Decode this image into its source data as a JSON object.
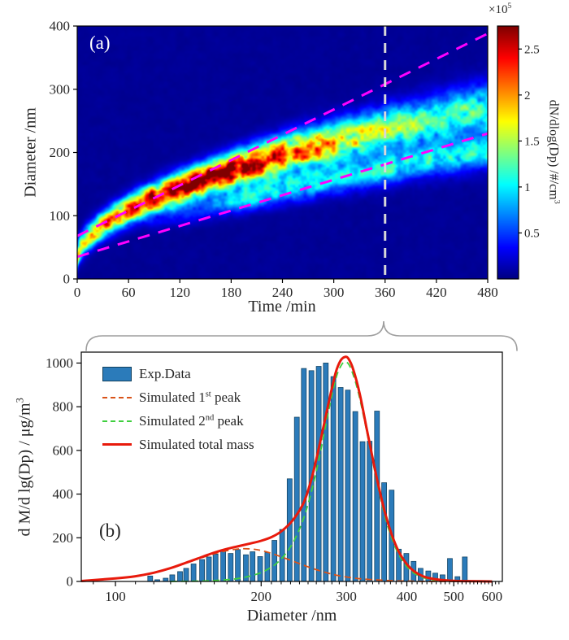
{
  "colors": {
    "bar_fill": "#2b7bba",
    "bar_edge": "#12415f",
    "first_peak": "#d95319",
    "second_peak": "#3fcf3f",
    "total_mass": "#e81a0c",
    "trend_line": "#ff00ff",
    "slice_line": "#d8d8d8",
    "brace": "#9e9e9e",
    "axis": "#000000",
    "text": "#262626"
  },
  "legend": {
    "items": [
      {
        "label": "Exp.Data"
      },
      {
        "label_prefix": "Simulated 1",
        "label_sup": "st",
        "label_suffix": " peak"
      },
      {
        "label_prefix": "Simulated 2",
        "label_sup": "nd",
        "label_suffix": " peak"
      },
      {
        "label": "Simulated total mass"
      }
    ]
  },
  "chart_data": [
    {
      "id": "panel-a-evolution-heatmap",
      "type": "heatmap",
      "xlabel": "Time /min",
      "ylabel": "Diameter /nm",
      "xlim": [
        0,
        480
      ],
      "ylim": [
        0,
        400
      ],
      "x_ticks": [
        0,
        60,
        120,
        180,
        240,
        300,
        360,
        420,
        480
      ],
      "y_ticks": [
        0,
        100,
        200,
        300,
        400
      ],
      "colorbar": {
        "label": "dN/dlog(Dp) /#/cm",
        "label_sup": "3",
        "scale_prefix": "×10",
        "scale_sup": "5",
        "ticks": [
          0.5,
          1,
          1.5,
          2,
          2.5
        ],
        "cmax": 2.75
      },
      "annotations": {
        "panel_label": "(a)",
        "vertical_dashed_line_x": 360,
        "magenta_trend_lines": [
          {
            "from": [
              0,
              68
            ],
            "to": [
              480,
              388
            ]
          },
          {
            "from": [
              0,
              35
            ],
            "to": [
              480,
              230
            ]
          }
        ]
      },
      "intensity_model": {
        "units": "1e5 #/cm3",
        "background": 0.06,
        "cmax": 2.75,
        "bands": [
          {
            "name": "main growth band",
            "center_base": 35,
            "center_gain": 235,
            "center_pow": 0.55,
            "width_base": 18,
            "width_gain": 20,
            "amp_base": 1.05,
            "amp_gain": 1.65,
            "amp_t0": 150,
            "amp_tw": 170
          },
          {
            "name": "second growth band",
            "center_base": 55,
            "center_gain": 150,
            "center_pow": 0.8,
            "width_base": 14,
            "width_gain": 12,
            "amp_peak": 0.95,
            "amp_t_on": 70,
            "amp_t_ramp": 140
          }
        ],
        "noise": {
          "base": 0.62,
          "gain": 0.78
        }
      }
    },
    {
      "id": "panel-b-mass-size-distribution",
      "type": "bar",
      "xlabel": "Diameter /nm",
      "ylabel": "d M/d lg(Dp) / μg/m",
      "ylabel_sup": "3",
      "panel_label": "(b)",
      "x_scale": "log",
      "xlim": [
        85,
        630
      ],
      "ylim": [
        0,
        1050
      ],
      "x_ticks": [
        100,
        200,
        300,
        400,
        500,
        600
      ],
      "y_ticks": [
        0,
        200,
        400,
        600,
        800,
        1000
      ],
      "bars": {
        "name": "Exp.Data",
        "diameters": [
          118,
          122,
          127,
          131,
          136,
          140,
          145,
          151,
          156,
          161,
          167,
          173,
          179,
          186,
          192,
          199,
          206,
          213,
          221,
          229,
          237,
          245,
          254,
          263,
          272,
          282,
          292,
          302,
          313,
          324,
          335,
          347,
          359,
          372,
          385,
          399,
          413,
          427,
          443,
          458,
          474,
          491,
          509,
          527
        ],
        "values": [
          25,
          8,
          15,
          30,
          45,
          60,
          80,
          100,
          112,
          125,
          138,
          128,
          146,
          122,
          136,
          114,
          132,
          188,
          238,
          470,
          752,
          975,
          965,
          985,
          1000,
          938,
          888,
          876,
          778,
          640,
          642,
          780,
          452,
          418,
          148,
          128,
          92,
          60,
          48,
          38,
          30,
          105,
          22,
          112
        ]
      },
      "series": [
        {
          "name": "Simulated 1st peak",
          "style": "dashed",
          "color_key": "first_peak",
          "points": [
            [
              88,
              5
            ],
            [
              100,
              14
            ],
            [
              110,
              24
            ],
            [
              120,
              40
            ],
            [
              130,
              60
            ],
            [
              140,
              84
            ],
            [
              150,
              107
            ],
            [
              160,
              127
            ],
            [
              170,
              141
            ],
            [
              180,
              149
            ],
            [
              190,
              149
            ],
            [
              200,
              142
            ],
            [
              210,
              129
            ],
            [
              220,
              113
            ],
            [
              232,
              94
            ],
            [
              245,
              74
            ],
            [
              260,
              54
            ],
            [
              275,
              38
            ],
            [
              290,
              26
            ],
            [
              310,
              16
            ],
            [
              330,
              10
            ],
            [
              355,
              6
            ],
            [
              380,
              3
            ],
            [
              420,
              1
            ],
            [
              470,
              0
            ],
            [
              600,
              0
            ]
          ]
        },
        {
          "name": "Simulated 2nd peak",
          "style": "dashed",
          "color_key": "second_peak",
          "points": [
            [
              130,
              0
            ],
            [
              150,
              2
            ],
            [
              165,
              6
            ],
            [
              180,
              14
            ],
            [
              195,
              32
            ],
            [
              205,
              52
            ],
            [
              215,
              82
            ],
            [
              225,
              128
            ],
            [
              235,
              196
            ],
            [
              245,
              292
            ],
            [
              255,
              425
            ],
            [
              265,
              590
            ],
            [
              275,
              770
            ],
            [
              285,
              925
            ],
            [
              292,
              985
            ],
            [
              298,
              1005
            ],
            [
              305,
              985
            ],
            [
              315,
              895
            ],
            [
              325,
              765
            ],
            [
              335,
              622
            ],
            [
              345,
              482
            ],
            [
              355,
              358
            ],
            [
              365,
              254
            ],
            [
              378,
              160
            ],
            [
              392,
              93
            ],
            [
              408,
              48
            ],
            [
              425,
              24
            ],
            [
              445,
              10
            ],
            [
              470,
              3
            ],
            [
              510,
              0
            ],
            [
              600,
              0
            ]
          ]
        },
        {
          "name": "Simulated total mass",
          "style": "solid",
          "color_key": "total_mass",
          "points": [
            [
              85,
              2
            ],
            [
              100,
              14
            ],
            [
              110,
              24
            ],
            [
              120,
              40
            ],
            [
              130,
              61
            ],
            [
              140,
              86
            ],
            [
              150,
              110
            ],
            [
              160,
              132
            ],
            [
              170,
              149
            ],
            [
              180,
              162
            ],
            [
              190,
              174
            ],
            [
              200,
              186
            ],
            [
              210,
              203
            ],
            [
              220,
              229
            ],
            [
              232,
              278
            ],
            [
              245,
              362
            ],
            [
              255,
              482
            ],
            [
              265,
              642
            ],
            [
              275,
              806
            ],
            [
              285,
              955
            ],
            [
              292,
              1012
            ],
            [
              298,
              1028
            ],
            [
              303,
              1020
            ],
            [
              310,
              970
            ],
            [
              320,
              855
            ],
            [
              330,
              705
            ],
            [
              340,
              563
            ],
            [
              350,
              432
            ],
            [
              360,
              320
            ],
            [
              372,
              216
            ],
            [
              385,
              136
            ],
            [
              400,
              79
            ],
            [
              415,
              45
            ],
            [
              432,
              24
            ],
            [
              450,
              13
            ],
            [
              475,
              6
            ],
            [
              510,
              2
            ],
            [
              560,
              1
            ],
            [
              600,
              0
            ]
          ]
        }
      ]
    }
  ]
}
